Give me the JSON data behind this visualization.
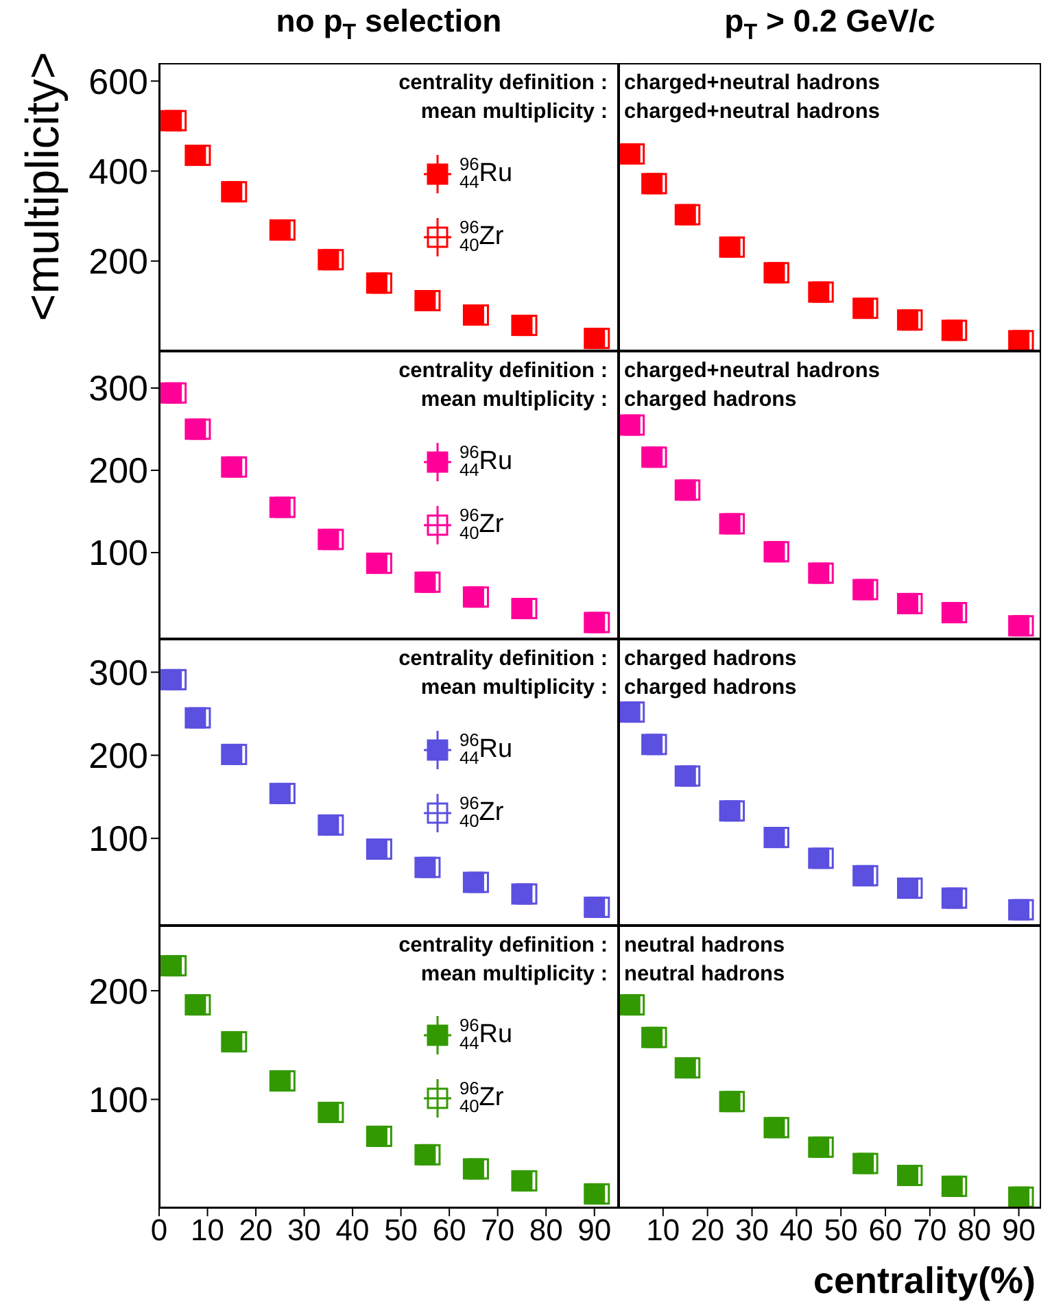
{
  "chart_data": [
    {
      "type": "scatter",
      "title": "no p$_{T}$ selection",
      "ylabel": "<multiplicity>",
      "annotations": [
        "centrality definition :",
        "mean multiplicity :"
      ],
      "xlim": [
        0,
        95
      ],
      "xticks": [
        0,
        10,
        20,
        30,
        40,
        50,
        60,
        70,
        80,
        90
      ],
      "ylim": [
        0,
        640
      ],
      "yticks": [
        200,
        400,
        600
      ],
      "tick_labels": "y",
      "marker": "square",
      "legend": "top right",
      "series": [
        {
          "name": "$^{96}$$_{44}$Ru",
          "color": "#ff0000",
          "x": [
            2.5,
            7.5,
            15,
            25,
            35,
            45,
            55,
            65,
            75,
            90
          ],
          "values": [
            512,
            435,
            354,
            269,
            203,
            151,
            112,
            80,
            57,
            28
          ]
        },
        {
          "name": "$^{96}$$_{40}$Zr",
          "color": "#ff0000",
          "x": [
            3.5,
            8.5,
            16,
            26,
            36,
            46,
            56,
            66,
            76,
            91
          ],
          "values": [
            512,
            435,
            354,
            269,
            203,
            151,
            112,
            80,
            57,
            28
          ]
        }
      ]
    },
    {
      "type": "scatter",
      "title": "p$_{T}$ > 0.2 GeV/c",
      "annotations": [
        "charged+neutral hadrons",
        "charged+neutral hadrons"
      ],
      "xlim": [
        0,
        95
      ],
      "xticks": [
        10,
        20,
        30,
        40,
        50,
        60,
        70,
        80,
        90
      ],
      "ylim": [
        0,
        640
      ],
      "yticks": [
        200,
        400,
        600
      ],
      "tick_labels": false,
      "marker": "square",
      "series": [
        {
          "color": "#ff0000",
          "x": [
            2.5,
            7.5,
            15,
            25,
            35,
            45,
            55,
            65,
            75,
            90
          ],
          "values": [
            438,
            372,
            303,
            231,
            174,
            131,
            95,
            69,
            46,
            23
          ]
        },
        {
          "color": "#ff0000",
          "x": [
            3.5,
            8.5,
            16,
            26,
            36,
            46,
            56,
            66,
            76,
            91
          ],
          "values": [
            438,
            372,
            303,
            231,
            174,
            131,
            95,
            69,
            46,
            23
          ]
        }
      ]
    },
    {
      "type": "scatter",
      "annotations": [
        "centrality definition :",
        "mean multiplicity :"
      ],
      "xlim": [
        0,
        95
      ],
      "xticks": [
        0,
        10,
        20,
        30,
        40,
        50,
        60,
        70,
        80,
        90
      ],
      "ylim": [
        -5,
        345
      ],
      "yticks": [
        100,
        200,
        300
      ],
      "tick_labels": "y",
      "marker": "square",
      "legend": "top right",
      "series": [
        {
          "name": "$^{96}$$_{44}$Ru",
          "color": "#ff0099",
          "x": [
            2.5,
            7.5,
            15,
            25,
            35,
            45,
            55,
            65,
            75,
            90
          ],
          "values": [
            294,
            250,
            204,
            155,
            116,
            87,
            64,
            46,
            32,
            15
          ]
        },
        {
          "name": "$^{96}$$_{40}$Zr",
          "color": "#ff0099",
          "x": [
            3.5,
            8.5,
            16,
            26,
            36,
            46,
            56,
            66,
            76,
            91
          ],
          "values": [
            294,
            250,
            204,
            155,
            116,
            87,
            64,
            46,
            32,
            15
          ]
        }
      ]
    },
    {
      "type": "scatter",
      "annotations": [
        "charged+neutral hadrons",
        "charged hadrons"
      ],
      "xlim": [
        0,
        95
      ],
      "xticks": [
        10,
        20,
        30,
        40,
        50,
        60,
        70,
        80,
        90
      ],
      "ylim": [
        -5,
        345
      ],
      "yticks": [
        100,
        200,
        300
      ],
      "tick_labels": false,
      "marker": "square",
      "series": [
        {
          "color": "#ff0099",
          "x": [
            2.5,
            7.5,
            15,
            25,
            35,
            45,
            55,
            65,
            75,
            90
          ],
          "values": [
            255,
            216,
            176,
            135,
            101,
            75,
            55,
            38,
            27,
            11
          ]
        },
        {
          "color": "#ff0099",
          "x": [
            3.5,
            8.5,
            16,
            26,
            36,
            46,
            56,
            66,
            76,
            91
          ],
          "values": [
            255,
            216,
            176,
            135,
            101,
            75,
            55,
            38,
            27,
            11
          ]
        }
      ]
    },
    {
      "type": "scatter",
      "annotations": [
        "centrality definition :",
        "mean multiplicity :"
      ],
      "xlim": [
        0,
        95
      ],
      "xticks": [
        0,
        10,
        20,
        30,
        40,
        50,
        60,
        70,
        80,
        90
      ],
      "ylim": [
        -5,
        340
      ],
      "yticks": [
        100,
        200,
        300
      ],
      "tick_labels": "y",
      "marker": "square",
      "legend": "top right",
      "series": [
        {
          "name": "$^{96}$$_{44}$Ru",
          "color": "#5b50e0",
          "x": [
            2.5,
            7.5,
            15,
            25,
            35,
            45,
            55,
            65,
            75,
            90
          ],
          "values": [
            291,
            245,
            201,
            154,
            116,
            87,
            65,
            47,
            33,
            17
          ]
        },
        {
          "name": "$^{96}$$_{40}$Zr",
          "color": "#5b50e0",
          "x": [
            3.5,
            8.5,
            16,
            26,
            36,
            46,
            56,
            66,
            76,
            91
          ],
          "values": [
            291,
            245,
            201,
            154,
            116,
            87,
            65,
            47,
            33,
            17
          ]
        }
      ]
    },
    {
      "type": "scatter",
      "annotations": [
        "charged hadrons",
        "charged hadrons"
      ],
      "xlim": [
        0,
        95
      ],
      "xticks": [
        10,
        20,
        30,
        40,
        50,
        60,
        70,
        80,
        90
      ],
      "ylim": [
        -5,
        340
      ],
      "yticks": [
        100,
        200,
        300
      ],
      "tick_labels": false,
      "marker": "square",
      "series": [
        {
          "color": "#5b50e0",
          "x": [
            2.5,
            7.5,
            15,
            25,
            35,
            45,
            55,
            65,
            75,
            90
          ],
          "values": [
            252,
            213,
            175,
            133,
            101,
            76,
            55,
            40,
            28,
            14
          ]
        },
        {
          "color": "#5b50e0",
          "x": [
            3.5,
            8.5,
            16,
            26,
            36,
            46,
            56,
            66,
            76,
            91
          ],
          "values": [
            252,
            213,
            175,
            133,
            101,
            76,
            55,
            40,
            28,
            14
          ]
        }
      ]
    },
    {
      "type": "scatter",
      "annotations": [
        "centrality definition :",
        "mean multiplicity :"
      ],
      "xlim": [
        0,
        95
      ],
      "xticks": [
        0,
        10,
        20,
        30,
        40,
        50,
        60,
        70,
        80,
        90
      ],
      "ylim": [
        0,
        260
      ],
      "yticks": [
        100,
        200
      ],
      "marker": "square",
      "legend": "right",
      "series": [
        {
          "name": "$^{96}$$_{44}$Ru",
          "color": "#339900",
          "x": [
            2.5,
            7.5,
            15,
            25,
            35,
            45,
            55,
            65,
            75,
            90
          ],
          "values": [
            223,
            187,
            153,
            117,
            88,
            66,
            49,
            36,
            25,
            13
          ]
        },
        {
          "name": "$^{96}$$_{40}$Zr",
          "color": "#339900",
          "x": [
            3.5,
            8.5,
            16,
            26,
            36,
            46,
            56,
            66,
            76,
            91
          ],
          "values": [
            223,
            187,
            153,
            117,
            88,
            66,
            49,
            36,
            25,
            13
          ]
        }
      ]
    },
    {
      "type": "scatter",
      "xlabel": "centrality(%)",
      "annotations": [
        "neutral hadrons",
        "neutral hadrons"
      ],
      "xlim": [
        0,
        95
      ],
      "xticks": [
        10,
        20,
        30,
        40,
        50,
        60,
        70,
        80,
        90
      ],
      "ylim": [
        0,
        260
      ],
      "yticks": [
        100,
        200
      ],
      "tick_labels": "x",
      "marker": "square",
      "series": [
        {
          "color": "#339900",
          "x": [
            2.5,
            7.5,
            15,
            25,
            35,
            45,
            55,
            65,
            75,
            90
          ],
          "values": [
            187,
            157,
            129,
            98,
            74,
            56,
            41,
            30,
            20,
            10
          ]
        },
        {
          "color": "#339900",
          "x": [
            3.5,
            8.5,
            16,
            26,
            36,
            46,
            56,
            66,
            76,
            91
          ],
          "values": [
            187,
            157,
            129,
            98,
            74,
            56,
            41,
            30,
            20,
            10
          ]
        }
      ]
    }
  ]
}
